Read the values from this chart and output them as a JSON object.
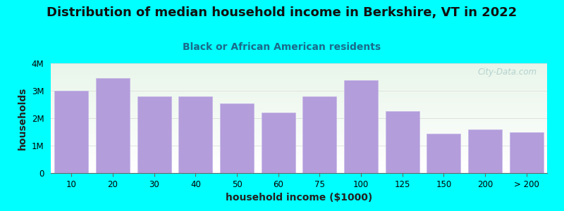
{
  "title": "Distribution of median household income in Berkshire, VT in 2022",
  "subtitle": "Black or African American residents",
  "xlabel": "household income ($1000)",
  "ylabel": "households",
  "background_color": "#00FFFF",
  "bar_color": "#b39ddb",
  "bar_edge_color": "#c8b8e8",
  "bar_heights": [
    3000000,
    3450000,
    2800000,
    2800000,
    2550000,
    2200000,
    2800000,
    3380000,
    2250000,
    1430000,
    1600000,
    1500000
  ],
  "ylim": [
    0,
    4000000
  ],
  "yticks": [
    0,
    1000000,
    2000000,
    3000000,
    4000000
  ],
  "ytick_labels": [
    "0",
    "1M",
    "2M",
    "3M",
    "4M"
  ],
  "title_fontsize": 13,
  "subtitle_fontsize": 10,
  "axis_label_fontsize": 10,
  "watermark_text": "City-Data.com",
  "watermark_color": "#aacaca",
  "xtick_labels": [
    "10",
    "20",
    "30",
    "40",
    "50",
    "60",
    "75",
    "100",
    "125",
    "150",
    "200",
    "> 200"
  ],
  "title_color": "#111111",
  "subtitle_color": "#1a6b8a",
  "grid_color": "#dddddd",
  "plot_bg_top_color": "#e8f5e9",
  "plot_bg_bottom_color": "#f8fff8"
}
